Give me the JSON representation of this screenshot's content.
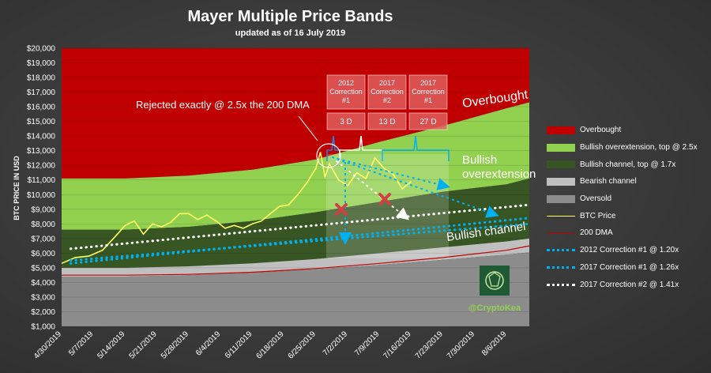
{
  "chart_data": {
    "type": "area",
    "title": "Mayer Multiple Price Bands",
    "subtitle": "updated as of 16 July 2019",
    "ylabel": "BTC PRICE IN USD",
    "xlabel": "",
    "ylim": [
      1000,
      20000
    ],
    "y_ticks": [
      "$1,000",
      "$2,000",
      "$3,000",
      "$4,000",
      "$5,000",
      "$6,000",
      "$7,000",
      "$8,000",
      "$9,000",
      "$10,000",
      "$11,000",
      "$12,000",
      "$13,000",
      "$14,000",
      "$15,000",
      "$16,000",
      "$17,000",
      "$18,000",
      "$19,000",
      "$20,000"
    ],
    "x_ticks": [
      "4/30/2019",
      "5/7/2019",
      "5/14/2019",
      "5/21/2019",
      "5/28/2019",
      "6/4/2019",
      "6/11/2019",
      "6/18/2019",
      "6/25/2019",
      "7/2/2019",
      "7/9/2019",
      "7/16/2019",
      "7/23/2019",
      "7/30/2019",
      "8/6/2019"
    ],
    "x_range": [
      "2019-04-30",
      "2019-08-11"
    ],
    "band_dates": [
      "2019-04-30",
      "2019-05-14",
      "2019-05-28",
      "2019-06-11",
      "2019-06-25",
      "2019-07-09",
      "2019-07-23",
      "2019-08-06",
      "2019-08-11"
    ],
    "series": [
      {
        "name": "Overbought",
        "color": "#c00000",
        "kind": "band",
        "lower": [
          11100,
          11100,
          11300,
          11700,
          12400,
          13600,
          14700,
          15900,
          16300
        ],
        "upper": [
          20000,
          20000,
          20000,
          20000,
          20000,
          20000,
          20000,
          20000,
          20000
        ]
      },
      {
        "name": "Bullish overextension, top @ 2.5x",
        "color": "#92d050",
        "kind": "band",
        "lower": [
          7600,
          7600,
          7800,
          8200,
          8800,
          9500,
          10200,
          10700,
          11100
        ],
        "upper": [
          11100,
          11100,
          11300,
          11700,
          12400,
          13600,
          14700,
          15900,
          16300
        ]
      },
      {
        "name": "Bullish channel, top @ 1.7x",
        "color": "#375623",
        "kind": "band",
        "lower": [
          5000,
          5000,
          5100,
          5300,
          5600,
          6000,
          6400,
          6800,
          7000
        ],
        "upper": [
          7600,
          7600,
          7800,
          8200,
          8800,
          9500,
          10200,
          10700,
          11100
        ]
      },
      {
        "name": "Bearish channel",
        "color": "#bfbfbf",
        "kind": "band",
        "lower": [
          4400,
          4400,
          4500,
          4650,
          4900,
          5200,
          5550,
          5900,
          6050
        ],
        "upper": [
          5000,
          5000,
          5100,
          5300,
          5600,
          6000,
          6400,
          6800,
          7000
        ]
      },
      {
        "name": "Oversold",
        "color": "#8c8c8c",
        "kind": "band",
        "lower": [
          1000,
          1000,
          1000,
          1000,
          1000,
          1000,
          1000,
          1000,
          1000
        ],
        "upper": [
          4400,
          4400,
          4500,
          4650,
          4900,
          5200,
          5550,
          5900,
          6050
        ]
      },
      {
        "name": "BTC Price",
        "color": "#ffff66",
        "kind": "line",
        "dates": [
          "2019-04-30",
          "2019-05-03",
          "2019-05-06",
          "2019-05-09",
          "2019-05-12",
          "2019-05-14",
          "2019-05-16",
          "2019-05-18",
          "2019-05-20",
          "2019-05-22",
          "2019-05-24",
          "2019-05-26",
          "2019-05-28",
          "2019-05-30",
          "2019-06-01",
          "2019-06-03",
          "2019-06-05",
          "2019-06-07",
          "2019-06-09",
          "2019-06-11",
          "2019-06-13",
          "2019-06-15",
          "2019-06-17",
          "2019-06-19",
          "2019-06-21",
          "2019-06-23",
          "2019-06-25",
          "2019-06-26",
          "2019-06-27",
          "2019-06-28",
          "2019-06-30",
          "2019-07-02",
          "2019-07-04",
          "2019-07-06",
          "2019-07-08",
          "2019-07-10",
          "2019-07-12",
          "2019-07-14",
          "2019-07-16"
        ],
        "values": [
          5300,
          5700,
          5800,
          6200,
          7200,
          7900,
          8200,
          7300,
          8000,
          7800,
          8100,
          8700,
          8700,
          8300,
          8600,
          8200,
          7700,
          7900,
          7700,
          8000,
          8200,
          8700,
          9200,
          9300,
          10000,
          10800,
          11800,
          12900,
          11200,
          12100,
          11000,
          10600,
          11500,
          11100,
          12500,
          11800,
          11400,
          10400,
          10900
        ]
      },
      {
        "name": "200 DMA",
        "color": "#c00000",
        "kind": "line",
        "dates": [
          "2019-04-30",
          "2019-05-14",
          "2019-05-28",
          "2019-06-11",
          "2019-06-25",
          "2019-07-09",
          "2019-07-23",
          "2019-08-06",
          "2019-08-11"
        ],
        "values": [
          4500,
          4500,
          4550,
          4700,
          4950,
          5300,
          5700,
          6200,
          6500
        ]
      },
      {
        "name": "2012 Correction #1 @ 1.20x",
        "color": "#00b0f0",
        "kind": "dotted",
        "dates": [
          "2019-05-02",
          "2019-08-11"
        ],
        "values": [
          5300,
          8400
        ]
      },
      {
        "name": "2017 Correction #1 @ 1.26x",
        "color": "#00b0f0",
        "kind": "dotted",
        "dates": [
          "2019-05-02",
          "2019-08-11"
        ],
        "values": [
          5500,
          8000
        ]
      },
      {
        "name": "2017 Correction #2 @ 1.41x",
        "color": "#ffffff",
        "kind": "dotted",
        "dates": [
          "2019-05-02",
          "2019-08-11"
        ],
        "values": [
          6300,
          9300
        ]
      }
    ],
    "correction_boxes": [
      {
        "label": "2012 Correction #1",
        "duration": "3 D"
      },
      {
        "label": "2017 Correction #2",
        "duration": "13 D"
      },
      {
        "label": "2017 Correction #1",
        "duration": "27 D"
      }
    ],
    "annotations": {
      "rejected": "Rejected exactly @ 2.5x the 200 DMA",
      "overbought": "Overbought",
      "bullish": "Bullish",
      "overextension": "overextension",
      "bullish_channel": "Bullish channel"
    },
    "legend_position": "right"
  },
  "watermark": "@CryptoKea"
}
